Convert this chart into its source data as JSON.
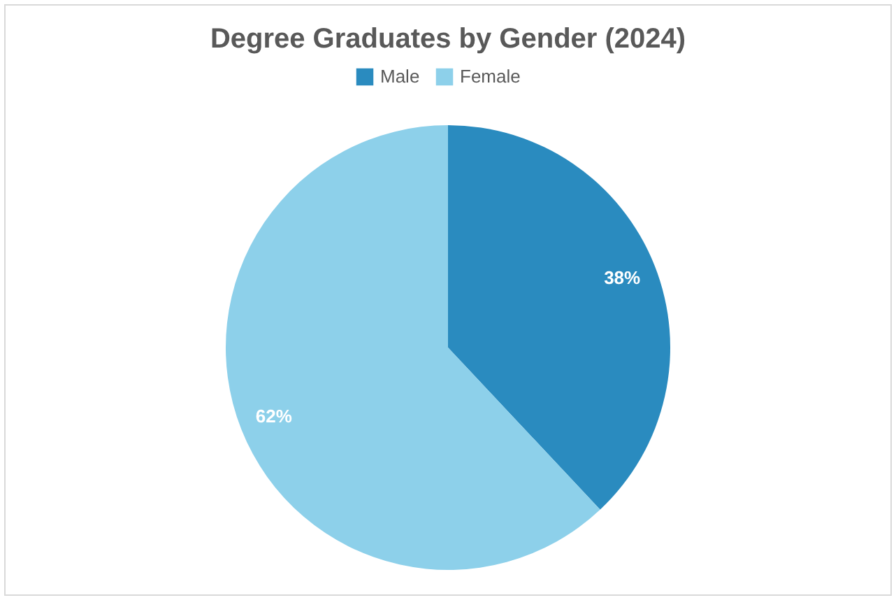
{
  "chart_data": {
    "type": "pie",
    "title": "Degree Graduates by Gender (2024)",
    "categories": [
      "Male",
      "Female"
    ],
    "values": [
      38,
      62
    ],
    "colors": [
      "#2a8bbf",
      "#8dd0ea"
    ],
    "value_labels": [
      "38%",
      "62%"
    ],
    "legend": "top"
  }
}
